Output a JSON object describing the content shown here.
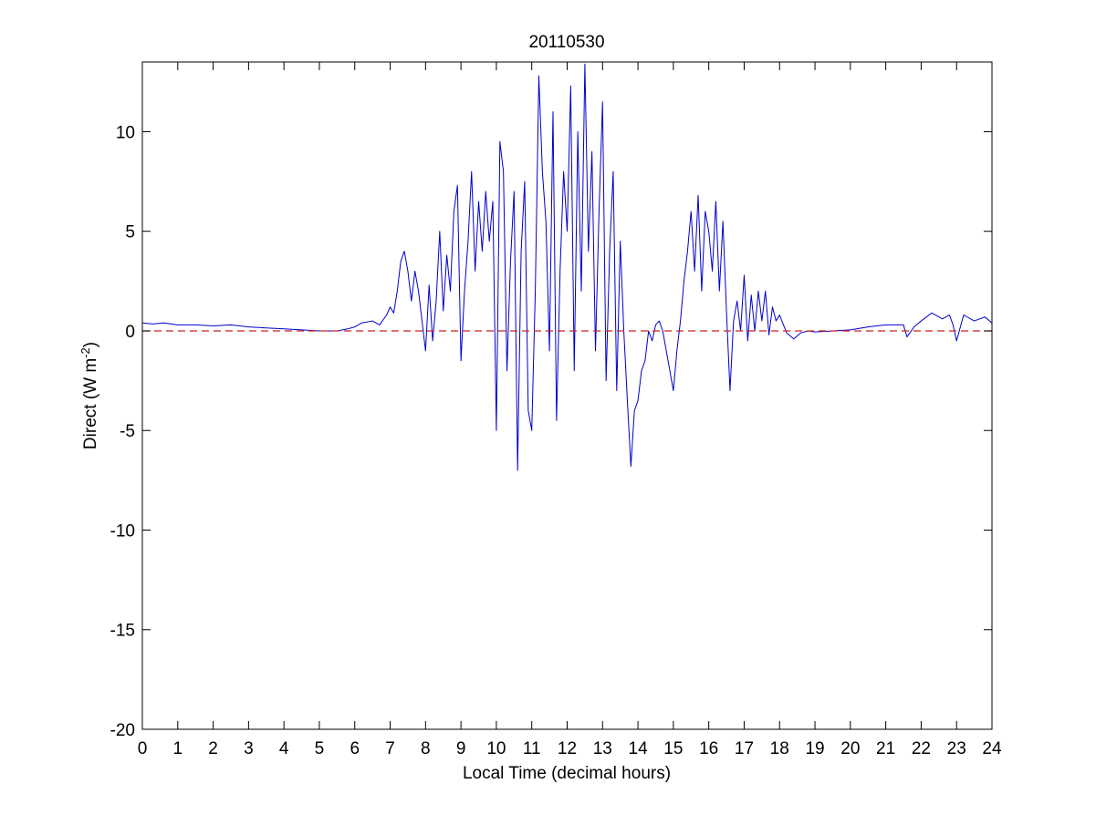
{
  "chart_data": {
    "type": "line",
    "title": "20110530",
    "xlabel": "Local Time (decimal hours)",
    "ylabel": {
      "prefix": "Direct (W m",
      "superscript": "-2",
      "suffix": ")"
    },
    "xlim": [
      0,
      24
    ],
    "ylim": [
      -20,
      13.5
    ],
    "xticks": [
      0,
      1,
      2,
      3,
      4,
      5,
      6,
      7,
      8,
      9,
      10,
      11,
      12,
      13,
      14,
      15,
      16,
      17,
      18,
      19,
      20,
      21,
      22,
      23,
      24
    ],
    "yticks": [
      -20,
      -15,
      -10,
      -5,
      0,
      5,
      10
    ],
    "grid": false,
    "colors": {
      "series": "#0000cc",
      "reference": "#cc2222",
      "axes": "#000000"
    },
    "series": [
      {
        "line_style": "solid",
        "x": [
          0,
          0.3,
          0.6,
          1.0,
          1.5,
          2.0,
          2.5,
          3.0,
          3.5,
          4.0,
          4.5,
          5.0,
          5.5,
          5.8,
          6.0,
          6.2,
          6.5,
          6.7,
          6.9,
          7.0,
          7.1,
          7.2,
          7.3,
          7.4,
          7.5,
          7.6,
          7.7,
          7.8,
          7.9,
          8.0,
          8.1,
          8.2,
          8.3,
          8.4,
          8.5,
          8.6,
          8.7,
          8.8,
          8.9,
          9.0,
          9.1,
          9.2,
          9.3,
          9.4,
          9.5,
          9.6,
          9.7,
          9.8,
          9.9,
          10.0,
          10.1,
          10.2,
          10.3,
          10.4,
          10.5,
          10.6,
          10.7,
          10.8,
          10.9,
          11.0,
          11.1,
          11.2,
          11.3,
          11.4,
          11.5,
          11.6,
          11.7,
          11.8,
          11.9,
          12.0,
          12.1,
          12.2,
          12.3,
          12.4,
          12.5,
          12.6,
          12.7,
          12.8,
          12.9,
          13.0,
          13.1,
          13.2,
          13.3,
          13.4,
          13.5,
          13.6,
          13.7,
          13.8,
          13.9,
          14.0,
          14.1,
          14.2,
          14.3,
          14.4,
          14.5,
          14.6,
          14.7,
          14.8,
          14.9,
          15.0,
          15.1,
          15.2,
          15.3,
          15.4,
          15.5,
          15.6,
          15.7,
          15.8,
          15.9,
          16.0,
          16.1,
          16.2,
          16.3,
          16.4,
          16.5,
          16.6,
          16.7,
          16.8,
          16.9,
          17.0,
          17.1,
          17.2,
          17.3,
          17.4,
          17.5,
          17.6,
          17.7,
          17.8,
          17.9,
          18.0,
          18.2,
          18.4,
          18.6,
          18.8,
          19.0,
          19.5,
          20.0,
          20.5,
          21.0,
          21.5,
          21.6,
          21.8,
          22.0,
          22.3,
          22.6,
          22.8,
          22.9,
          23.0,
          23.2,
          23.5,
          23.8,
          24.0
        ],
        "y": [
          0.4,
          0.35,
          0.4,
          0.3,
          0.3,
          0.25,
          0.3,
          0.2,
          0.15,
          0.1,
          0.05,
          0.0,
          0.0,
          0.1,
          0.2,
          0.4,
          0.5,
          0.3,
          0.8,
          1.2,
          0.9,
          2.0,
          3.5,
          4.0,
          3.0,
          1.5,
          3.0,
          2.0,
          0.5,
          -1.0,
          2.3,
          -0.5,
          1.5,
          5.0,
          1.0,
          3.8,
          2.0,
          6.0,
          7.3,
          -1.5,
          2.0,
          4.5,
          8.0,
          3.0,
          6.5,
          4.0,
          7.0,
          4.5,
          6.5,
          -5.0,
          9.5,
          8.0,
          -2.0,
          3.5,
          7.0,
          -7.0,
          4.0,
          7.5,
          -4.0,
          -5.0,
          2.0,
          12.8,
          8.0,
          5.5,
          -1.0,
          11.0,
          -4.5,
          3.0,
          8.0,
          5.0,
          12.3,
          -2.0,
          10.0,
          2.0,
          13.4,
          4.0,
          9.0,
          -1.0,
          6.0,
          11.5,
          -2.5,
          4.0,
          8.0,
          -3.0,
          4.5,
          0.0,
          -3.5,
          -6.8,
          -4.0,
          -3.5,
          -2.0,
          -1.5,
          0.0,
          -0.5,
          0.3,
          0.5,
          0.0,
          -1.0,
          -2.0,
          -3.0,
          -1.0,
          0.5,
          2.5,
          4.0,
          6.0,
          3.0,
          6.8,
          2.0,
          6.0,
          5.0,
          3.0,
          6.5,
          2.0,
          5.5,
          1.0,
          -3.0,
          0.5,
          1.5,
          0.0,
          2.8,
          -0.5,
          1.8,
          0.0,
          2.0,
          0.5,
          2.0,
          -0.2,
          1.2,
          0.5,
          0.8,
          -0.1,
          -0.4,
          -0.1,
          0.0,
          -0.05,
          0.0,
          0.05,
          0.2,
          0.3,
          0.3,
          -0.3,
          0.2,
          0.5,
          0.9,
          0.6,
          0.8,
          0.3,
          -0.5,
          0.8,
          0.5,
          0.7,
          0.4
        ]
      },
      {
        "line_style": "dashed",
        "x": [
          0,
          24
        ],
        "y": [
          0,
          0
        ]
      }
    ]
  }
}
